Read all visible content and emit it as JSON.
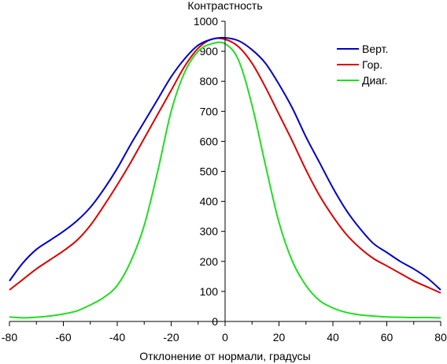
{
  "chart_data": {
    "type": "line",
    "title": "",
    "ylabel": "Контрастность",
    "xlabel": "Отклонение от нормали, градусы",
    "xlim": [
      -80,
      80
    ],
    "ylim": [
      0,
      1000
    ],
    "x_ticks": [
      -80,
      -60,
      -40,
      -20,
      0,
      20,
      40,
      60,
      80
    ],
    "y_ticks": [
      0,
      100,
      200,
      300,
      400,
      500,
      600,
      700,
      800,
      900,
      1000
    ],
    "x_tick_labels": [
      "-80",
      "-60",
      "-40",
      "-20",
      "0",
      "20",
      "40",
      "60",
      "80"
    ],
    "y_tick_labels": [
      "0",
      "100",
      "200",
      "300",
      "400",
      "500",
      "600",
      "700",
      "800",
      "900",
      "1000"
    ],
    "grid": false,
    "legend_position": "top-right",
    "x": [
      -80,
      -75,
      -70,
      -65,
      -60,
      -55,
      -50,
      -45,
      -40,
      -35,
      -30,
      -25,
      -20,
      -15,
      -10,
      -5,
      0,
      5,
      10,
      15,
      20,
      25,
      30,
      35,
      40,
      45,
      50,
      55,
      60,
      65,
      70,
      75,
      80
    ],
    "series": [
      {
        "name": "Верт.",
        "color": "#0000cc",
        "values": [
          135,
          195,
          240,
          270,
          300,
          335,
          380,
          440,
          510,
          590,
          665,
          740,
          815,
          875,
          920,
          940,
          945,
          935,
          905,
          860,
          790,
          710,
          615,
          530,
          445,
          370,
          310,
          260,
          230,
          200,
          175,
          145,
          105
        ]
      },
      {
        "name": "Гор.",
        "color": "#dd0000",
        "values": [
          105,
          140,
          175,
          205,
          235,
          270,
          320,
          385,
          455,
          530,
          610,
          690,
          770,
          850,
          910,
          940,
          940,
          915,
          860,
          780,
          690,
          600,
          505,
          420,
          350,
          290,
          245,
          210,
          185,
          160,
          135,
          115,
          95
        ]
      },
      {
        "name": "Диаг.",
        "color": "#22dd22",
        "values": [
          15,
          12,
          14,
          18,
          25,
          35,
          55,
          80,
          120,
          200,
          320,
          500,
          700,
          830,
          900,
          925,
          925,
          870,
          720,
          520,
          330,
          200,
          120,
          70,
          45,
          30,
          22,
          18,
          15,
          14,
          13,
          13,
          12
        ]
      }
    ]
  }
}
